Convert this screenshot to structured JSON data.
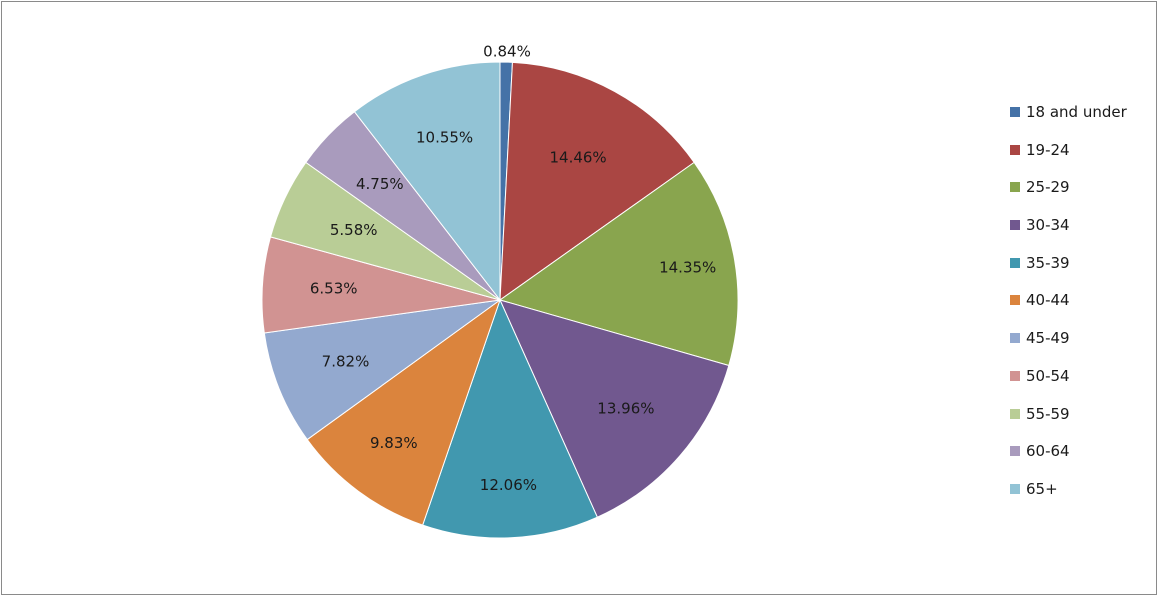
{
  "chart_data": {
    "type": "pie",
    "title": "",
    "categories": [
      "18 and under",
      "19-24",
      "25-29",
      "30-34",
      "35-39",
      "40-44",
      "45-49",
      "50-54",
      "55-59",
      "60-64",
      "65+"
    ],
    "values": [
      0.84,
      14.46,
      14.35,
      13.96,
      12.06,
      9.83,
      7.82,
      6.53,
      5.58,
      4.75,
      10.55
    ],
    "data_labels": [
      "0.84%",
      "14.46%",
      "14.35%",
      "13.96%",
      "12.06%",
      "9.83%",
      "7.82%",
      "6.53%",
      "5.58%",
      "4.75%",
      "10.55%"
    ],
    "colors": [
      "#4572A7",
      "#AA4643",
      "#89A54E",
      "#71588F",
      "#4198AF",
      "#DB843D",
      "#93A9CF",
      "#D19392",
      "#B9CD96",
      "#A99BBD",
      "#92C3D5"
    ],
    "start_angle": "12 o'clock",
    "direction": "clockwise",
    "legend_position": "right"
  }
}
